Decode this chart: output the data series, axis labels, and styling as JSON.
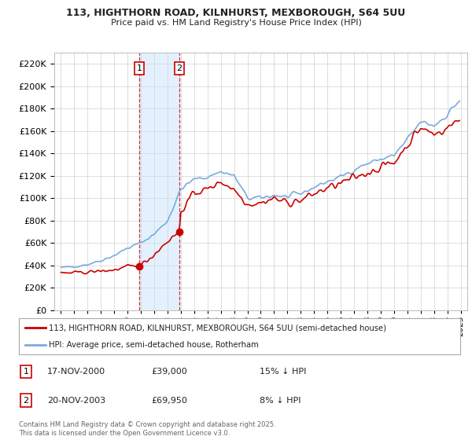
{
  "title_line1": "113, HIGHTHORN ROAD, KILNHURST, MEXBOROUGH, S64 5UU",
  "title_line2": "Price paid vs. HM Land Registry's House Price Index (HPI)",
  "ytick_values": [
    0,
    20000,
    40000,
    60000,
    80000,
    100000,
    120000,
    140000,
    160000,
    180000,
    200000,
    220000
  ],
  "ylim": [
    0,
    230000
  ],
  "sale1_date": "17-NOV-2000",
  "sale1_price": 39000,
  "sale1_label": "15% ↓ HPI",
  "sale2_date": "20-NOV-2003",
  "sale2_price": 69950,
  "sale2_label": "8% ↓ HPI",
  "legend_house": "113, HIGHTHORN ROAD, KILNHURST, MEXBOROUGH, S64 5UU (semi-detached house)",
  "legend_hpi": "HPI: Average price, semi-detached house, Rotherham",
  "footnote": "Contains HM Land Registry data © Crown copyright and database right 2025.\nThis data is licensed under the Open Government Licence v3.0.",
  "house_color": "#cc0000",
  "hpi_color": "#7aabdc",
  "vline_color": "#cc0000",
  "shade_color": "#ddeeff",
  "background_color": "#ffffff",
  "sale1_x": 2000.88,
  "sale2_x": 2003.88,
  "xlim_min": 1994.5,
  "xlim_max": 2025.5,
  "xtick_years": [
    1995,
    1996,
    1997,
    1998,
    1999,
    2000,
    2001,
    2002,
    2003,
    2004,
    2005,
    2006,
    2007,
    2008,
    2009,
    2010,
    2011,
    2012,
    2013,
    2014,
    2015,
    2016,
    2017,
    2018,
    2019,
    2020,
    2021,
    2022,
    2023,
    2024,
    2025
  ]
}
